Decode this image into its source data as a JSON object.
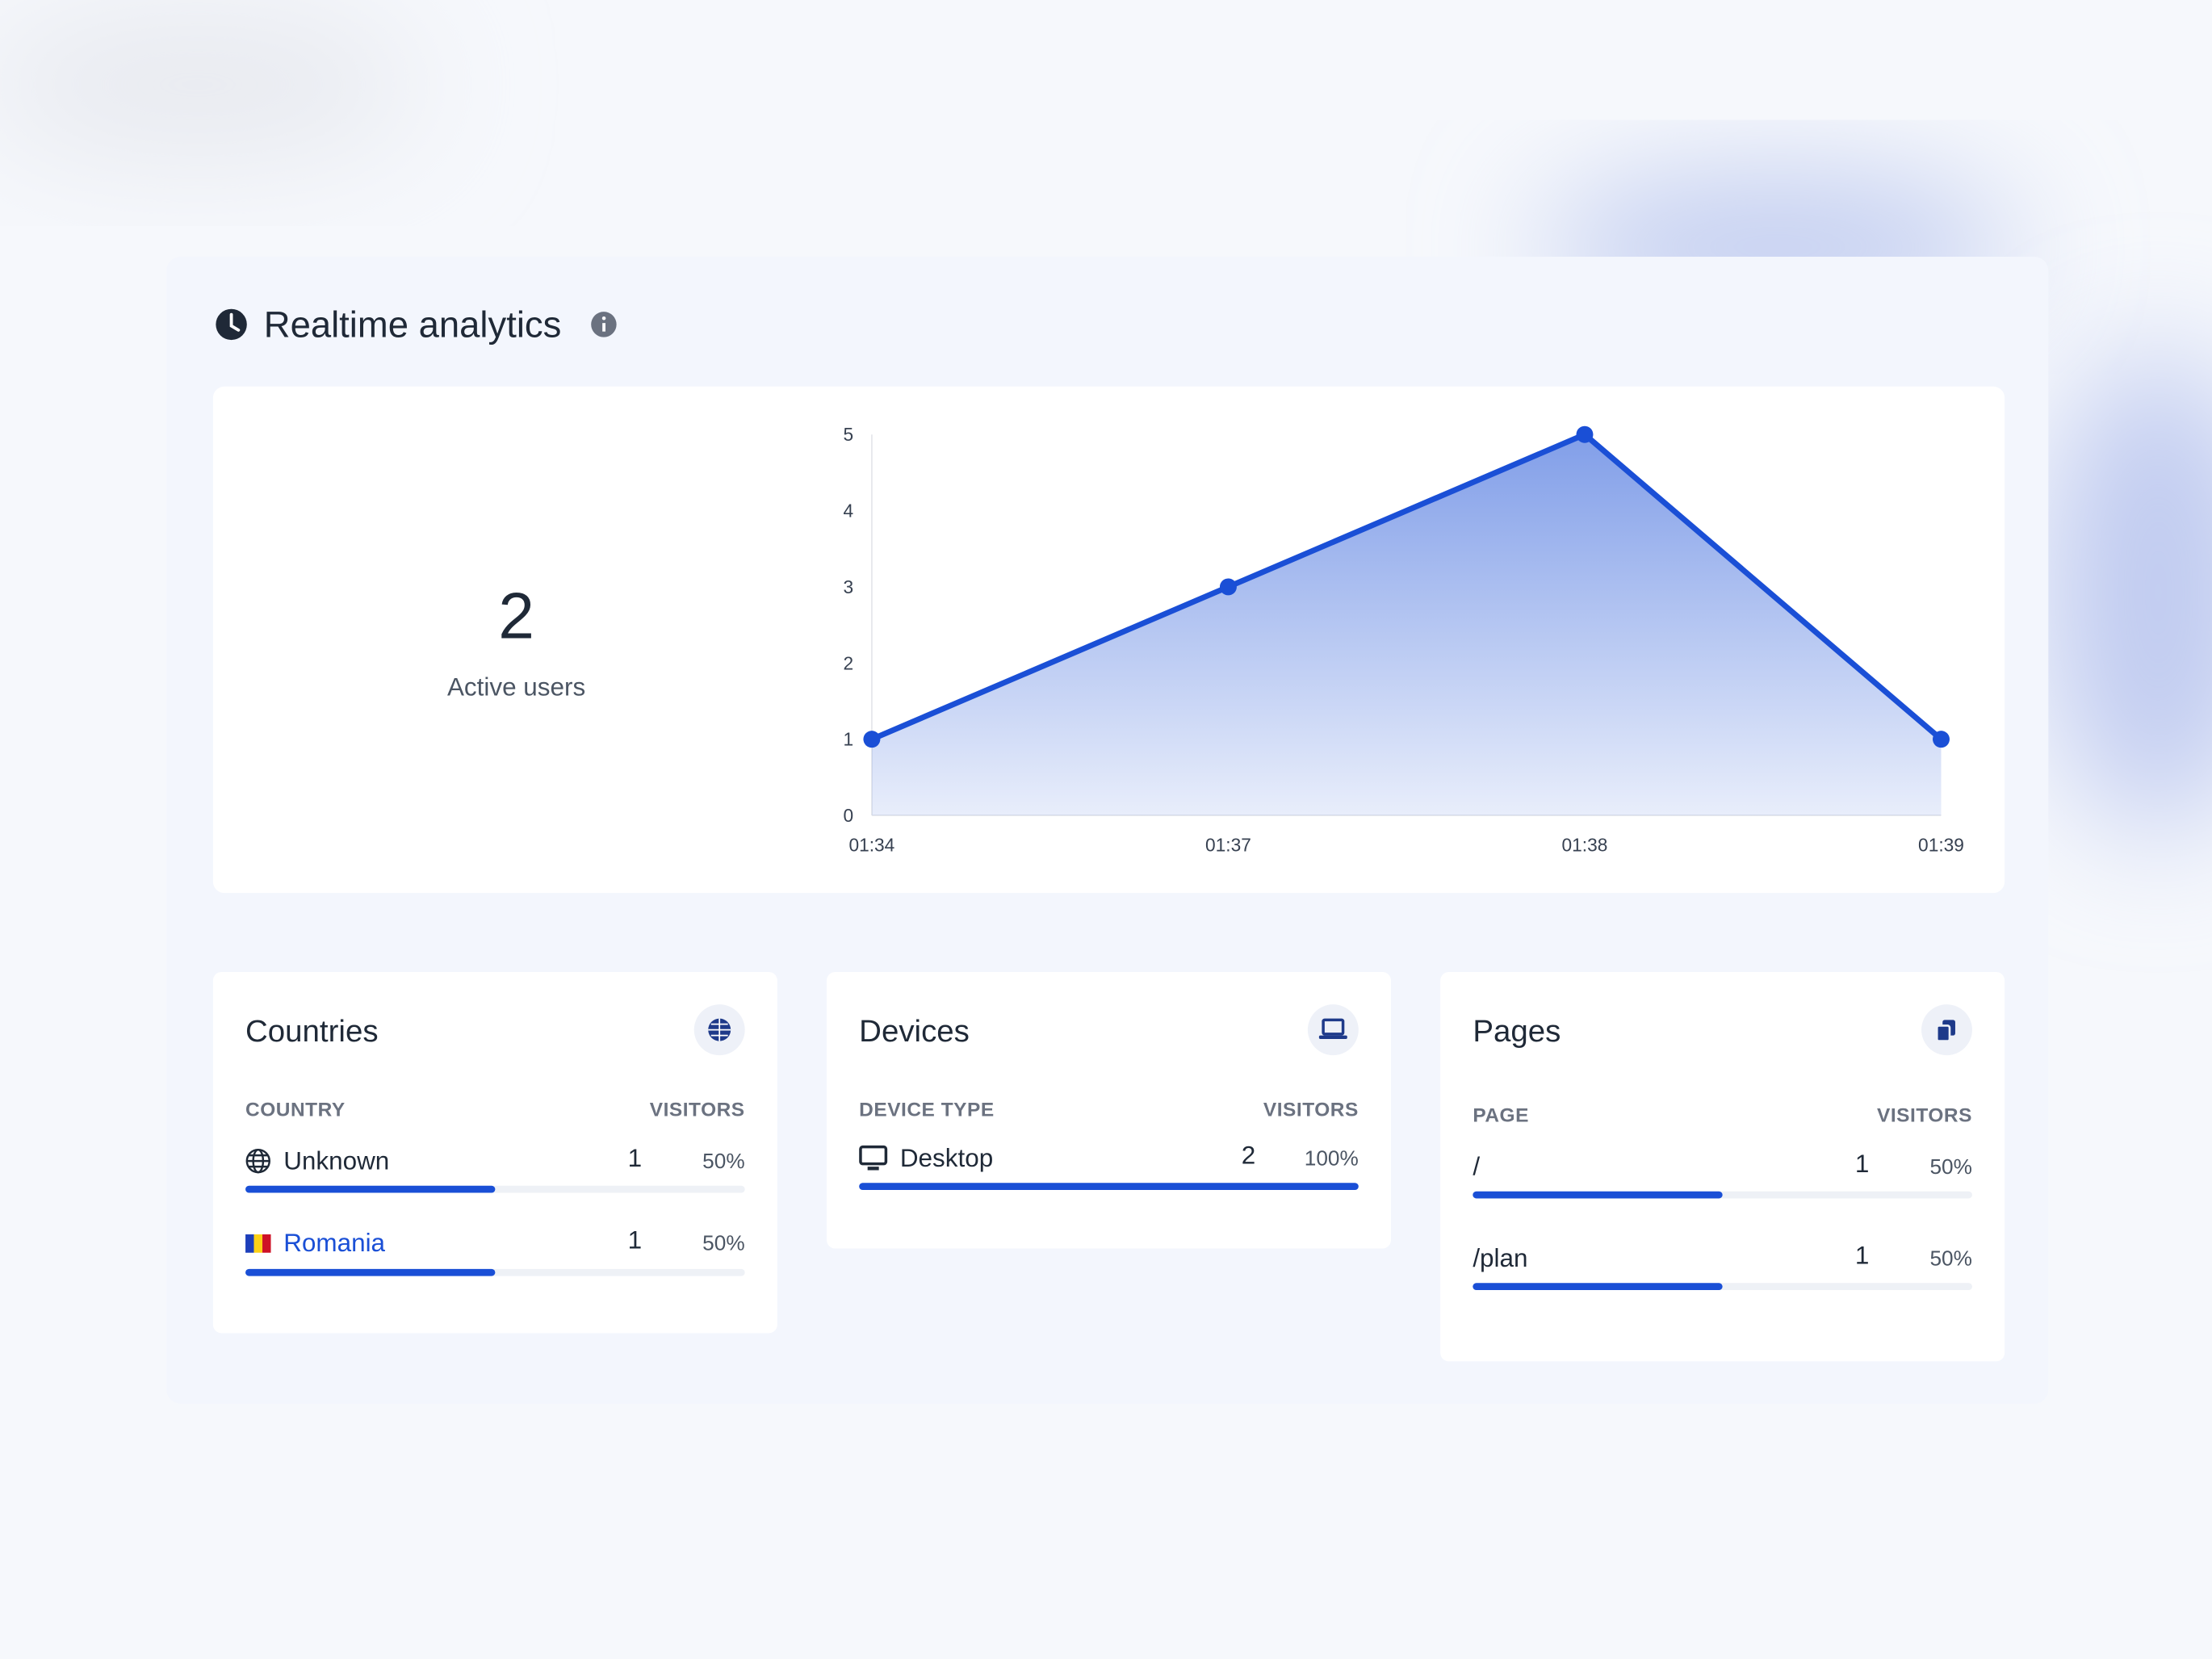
{
  "header": {
    "title": "Realtime analytics"
  },
  "summary": {
    "active_users": 2,
    "label": "Active users"
  },
  "chart_data": {
    "type": "line",
    "categories": [
      "01:34",
      "01:37",
      "01:38",
      "01:39"
    ],
    "values": [
      1,
      3,
      5,
      1
    ],
    "color": "#1a4fd6",
    "area": true,
    "ylim": [
      0,
      5
    ],
    "yticks": [
      0,
      1,
      2,
      3,
      4,
      5
    ],
    "grid": false
  },
  "countries": {
    "title": "Countries",
    "columns": [
      "COUNTRY",
      "VISITORS"
    ],
    "rows": [
      {
        "name": "Unknown",
        "visitors": 1,
        "share": 50,
        "share_label": "50%"
      },
      {
        "name": "Romania",
        "visitors": 1,
        "share": 50,
        "share_label": "50%"
      }
    ]
  },
  "devices": {
    "title": "Devices",
    "columns": [
      "DEVICE TYPE",
      "VISITORS"
    ],
    "rows": [
      {
        "name": "Desktop",
        "visitors": 2,
        "share": 100,
        "share_label": "100%"
      }
    ]
  },
  "pages": {
    "title": "Pages",
    "columns": [
      "PAGE",
      "VISITORS"
    ],
    "rows": [
      {
        "name": "/",
        "visitors": 1,
        "share": 50,
        "share_label": "50%"
      },
      {
        "name": "/plan",
        "visitors": 1,
        "share": 50,
        "share_label": "50%"
      }
    ]
  }
}
